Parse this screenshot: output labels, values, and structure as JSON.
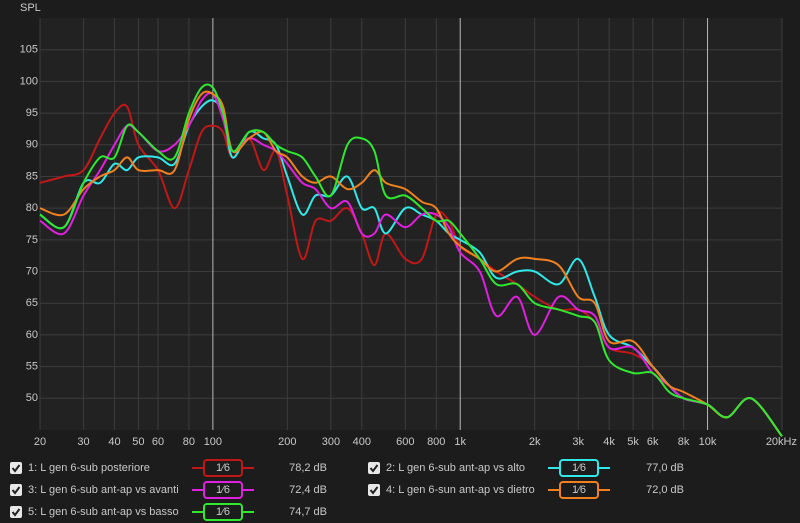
{
  "chart_data": {
    "type": "line",
    "title": "SPL",
    "log_x": true,
    "grid": true,
    "xlim": [
      20,
      20000
    ],
    "ylim": [
      45,
      110
    ],
    "xticks": [
      20,
      30,
      40,
      50,
      60,
      80,
      100,
      200,
      300,
      400,
      600,
      800,
      {
        "value": 1000,
        "label": "1k"
      },
      {
        "value": 2000,
        "label": "2k"
      },
      {
        "value": 3000,
        "label": "3k"
      },
      {
        "value": 4000,
        "label": "4k"
      },
      {
        "value": 5000,
        "label": "5k"
      },
      {
        "value": 6000,
        "label": "6k"
      },
      {
        "value": 8000,
        "label": "8k"
      },
      {
        "value": 10000,
        "label": "10k"
      },
      {
        "value": 20000,
        "label": "20kHz"
      }
    ],
    "yticks": [
      50,
      55,
      60,
      65,
      70,
      75,
      80,
      85,
      90,
      95,
      100,
      105
    ],
    "x": [
      20,
      25,
      30,
      35,
      40,
      45,
      50,
      60,
      70,
      80,
      90,
      100,
      110,
      120,
      140,
      160,
      180,
      200,
      230,
      260,
      300,
      350,
      400,
      450,
      500,
      600,
      700,
      800,
      900,
      1000,
      1200,
      1400,
      1700,
      2000,
      2500,
      3000,
      3500,
      4000,
      5000,
      6000,
      7000,
      8000,
      10000,
      12000,
      15000,
      20000
    ],
    "series": [
      {
        "name": "1: L gen 6-sub posteriore",
        "color": "#c01818",
        "smoothing": "1⁄6",
        "level": "78,2 dB",
        "values": [
          84,
          85,
          86,
          91,
          95,
          96,
          90,
          86,
          80,
          86,
          92,
          93,
          92,
          88,
          91,
          86,
          89,
          82,
          72,
          78,
          78,
          80,
          76,
          71,
          76,
          72,
          72,
          79,
          78,
          74,
          72,
          70,
          68,
          66,
          64,
          64,
          62,
          58,
          57,
          55,
          52,
          50,
          49,
          47,
          50,
          44
        ]
      },
      {
        "name": "2: L gen 6-sub ant-ap vs alto",
        "color": "#30e8e8",
        "smoothing": "1⁄6",
        "level": "77,0 dB",
        "values": [
          79,
          77,
          84,
          84,
          87,
          86,
          88,
          88,
          87,
          93,
          96,
          97,
          95,
          88,
          92,
          91,
          90,
          85,
          79,
          82,
          82,
          85,
          80,
          80,
          76,
          80,
          79,
          78,
          76,
          75,
          73,
          69,
          70,
          70,
          68,
          72,
          66,
          60,
          58,
          55,
          52,
          50,
          49,
          47,
          50,
          44
        ]
      },
      {
        "name": "3: L gen 6-sub ant-ap vs avanti",
        "color": "#e020e0",
        "smoothing": "1⁄6",
        "level": "72,4 dB",
        "values": [
          78,
          76,
          82,
          86,
          90,
          93,
          92,
          89,
          90,
          93,
          97,
          98,
          94,
          89,
          91,
          90,
          89,
          87,
          84,
          83,
          80,
          81,
          76,
          76,
          79,
          77,
          79,
          79,
          77,
          73,
          70,
          63,
          66,
          60,
          66,
          64,
          63,
          58,
          58,
          54,
          52,
          50,
          49,
          47,
          50,
          44
        ]
      },
      {
        "name": "4: L gen 6-sun ant-ap vs dietro",
        "color": "#f08020",
        "smoothing": "1⁄6",
        "level": "72,0 dB",
        "values": [
          80,
          79,
          83,
          85,
          86,
          88,
          86,
          86,
          86,
          94,
          98,
          98,
          96,
          89,
          91,
          92,
          89,
          88,
          85,
          84,
          85,
          83,
          84,
          86,
          84,
          83,
          81,
          80,
          76,
          74,
          72,
          70,
          72,
          72,
          71,
          66,
          65,
          59,
          59,
          55,
          52,
          51,
          49,
          47,
          50,
          44
        ]
      },
      {
        "name": "5: L gen 6-sub ant-ap vs basso",
        "color": "#30e830",
        "smoothing": "1⁄6",
        "level": "74,7 dB",
        "values": [
          79,
          77,
          84,
          88,
          88,
          93,
          92,
          89,
          88,
          95,
          99,
          99,
          95,
          89,
          92,
          92,
          90,
          89,
          88,
          85,
          82,
          90,
          91,
          89,
          82,
          82,
          80,
          78,
          78,
          76,
          72,
          68,
          68,
          65,
          64,
          63,
          62,
          56,
          54,
          54,
          51,
          50,
          49,
          47,
          50,
          44
        ]
      }
    ]
  }
}
